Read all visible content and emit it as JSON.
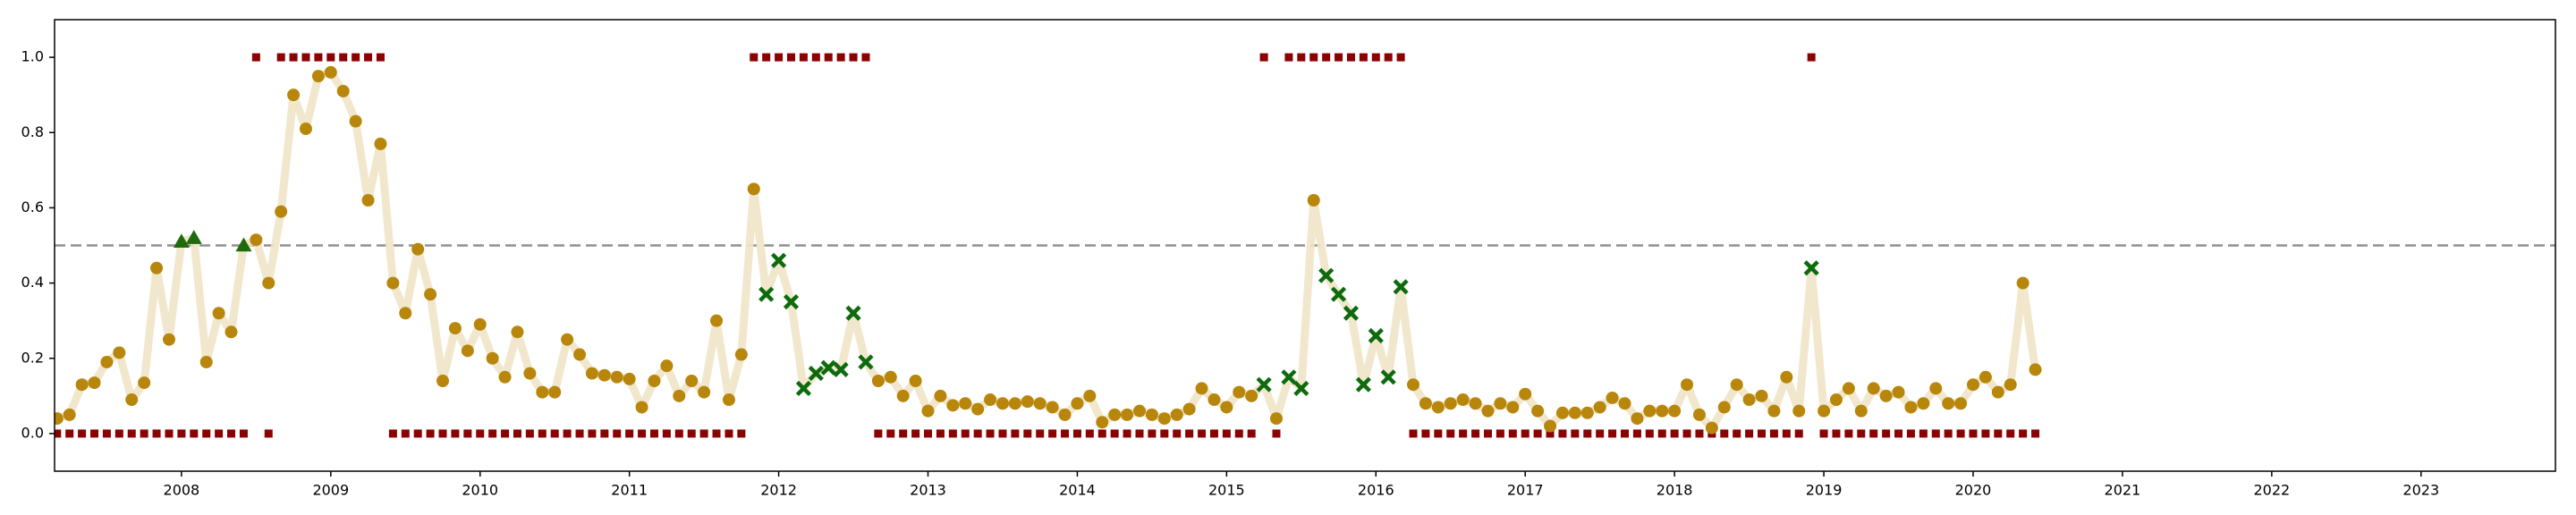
{
  "chart_data": {
    "type": "line",
    "x": [
      2007.1667,
      2007.25,
      2007.3333,
      2007.4167,
      2007.5,
      2007.5833,
      2007.6667,
      2007.75,
      2007.8333,
      2007.9167,
      2008,
      2008.0833,
      2008.1667,
      2008.25,
      2008.3333,
      2008.4167,
      2008.5,
      2008.5833,
      2008.6667,
      2008.75,
      2008.8333,
      2008.9167,
      2009,
      2009.0833,
      2009.1667,
      2009.25,
      2009.3333,
      2009.4167,
      2009.5,
      2009.5833,
      2009.6667,
      2009.75,
      2009.8333,
      2009.9167,
      2010,
      2010.0833,
      2010.1667,
      2010.25,
      2010.3333,
      2010.4167,
      2010.5,
      2010.5833,
      2010.6667,
      2010.75,
      2010.8333,
      2010.9167,
      2011,
      2011.0833,
      2011.1667,
      2011.25,
      2011.3333,
      2011.4167,
      2011.5,
      2011.5833,
      2011.6667,
      2011.75,
      2011.8333,
      2011.9167,
      2012,
      2012.0833,
      2012.1667,
      2012.25,
      2012.3333,
      2012.4167,
      2012.5,
      2012.5833,
      2012.6667,
      2012.75,
      2012.8333,
      2012.9167,
      2013,
      2013.0833,
      2013.1667,
      2013.25,
      2013.3333,
      2013.4167,
      2013.5,
      2013.5833,
      2013.6667,
      2013.75,
      2013.8333,
      2013.9167,
      2014,
      2014.0833,
      2014.1667,
      2014.25,
      2014.3333,
      2014.4167,
      2014.5,
      2014.5833,
      2014.6667,
      2014.75,
      2014.8333,
      2014.9167,
      2015,
      2015.0833,
      2015.1667,
      2015.25,
      2015.3333,
      2015.4167,
      2015.5,
      2015.5833,
      2015.6667,
      2015.75,
      2015.8333,
      2015.9167,
      2016,
      2016.0833,
      2016.1667,
      2016.25,
      2016.3333,
      2016.4167,
      2016.5,
      2016.5833,
      2016.6667,
      2016.75,
      2016.8333,
      2016.9167,
      2017,
      2017.0833,
      2017.1667,
      2017.25,
      2017.3333,
      2017.4167,
      2017.5,
      2017.5833,
      2017.6667,
      2017.75,
      2017.8333,
      2017.9167,
      2018,
      2018.0833,
      2018.1667,
      2018.25,
      2018.3333,
      2018.4167,
      2018.5,
      2018.5833,
      2018.6667,
      2018.75,
      2018.8333,
      2018.9167,
      2019,
      2019.0833,
      2019.1667,
      2019.25,
      2019.3333,
      2019.4167,
      2019.5,
      2019.5833,
      2019.6667,
      2019.75,
      2019.8333,
      2019.9167,
      2020,
      2020.0833,
      2020.1667,
      2020.25,
      2020.3333,
      2020.4167
    ],
    "values": [
      0.04,
      0.05,
      0.13,
      0.135,
      0.19,
      0.215,
      0.09,
      0.135,
      0.44,
      0.25,
      0.51,
      0.52,
      0.19,
      0.32,
      0.27,
      0.5,
      0.515,
      0.4,
      0.59,
      0.9,
      0.81,
      0.95,
      0.96,
      0.91,
      0.83,
      0.62,
      0.77,
      0.4,
      0.32,
      0.49,
      0.37,
      0.14,
      0.28,
      0.22,
      0.29,
      0.2,
      0.15,
      0.27,
      0.16,
      0.11,
      0.11,
      0.25,
      0.21,
      0.16,
      0.155,
      0.15,
      0.145,
      0.07,
      0.14,
      0.18,
      0.1,
      0.14,
      0.11,
      0.3,
      0.09,
      0.21,
      0.65,
      0.37,
      0.46,
      0.35,
      0.12,
      0.16,
      0.175,
      0.17,
      0.32,
      0.19,
      0.14,
      0.15,
      0.1,
      0.14,
      0.06,
      0.1,
      0.075,
      0.08,
      0.065,
      0.09,
      0.08,
      0.08,
      0.085,
      0.08,
      0.07,
      0.05,
      0.08,
      0.1,
      0.03,
      0.05,
      0.05,
      0.06,
      0.05,
      0.04,
      0.05,
      0.065,
      0.12,
      0.09,
      0.07,
      0.11,
      0.1,
      0.13,
      0.04,
      0.15,
      0.12,
      0.62,
      0.42,
      0.37,
      0.32,
      0.13,
      0.26,
      0.15,
      0.39,
      0.13,
      0.08,
      0.07,
      0.08,
      0.09,
      0.08,
      0.06,
      0.08,
      0.07,
      0.105,
      0.06,
      0.02,
      0.055,
      0.055,
      0.055,
      0.07,
      0.095,
      0.08,
      0.04,
      0.06,
      0.06,
      0.06,
      0.13,
      0.05,
      0.015,
      0.07,
      0.13,
      0.09,
      0.1,
      0.06,
      0.15,
      0.06,
      0.44,
      0.06,
      0.09,
      0.12,
      0.06,
      0.12,
      0.1,
      0.11,
      0.07,
      0.08,
      0.12,
      0.08,
      0.08,
      0.13,
      0.15,
      0.11,
      0.13,
      0.4,
      0.17
    ],
    "labels": [
      0,
      0,
      0,
      0,
      0,
      0,
      0,
      0,
      0,
      0,
      0,
      0,
      0,
      0,
      0,
      0,
      1,
      0,
      1,
      1,
      1,
      1,
      1,
      1,
      1,
      1,
      1,
      0,
      0,
      0,
      0,
      0,
      0,
      0,
      0,
      0,
      0,
      0,
      0,
      0,
      0,
      0,
      0,
      0,
      0,
      0,
      0,
      0,
      0,
      0,
      0,
      0,
      0,
      0,
      0,
      0,
      1,
      1,
      1,
      1,
      1,
      1,
      1,
      1,
      1,
      1,
      0,
      0,
      0,
      0,
      0,
      0,
      0,
      0,
      0,
      0,
      0,
      0,
      0,
      0,
      0,
      0,
      0,
      0,
      0,
      0,
      0,
      0,
      0,
      0,
      0,
      0,
      0,
      0,
      0,
      0,
      0,
      1,
      0,
      1,
      1,
      1,
      1,
      1,
      1,
      1,
      1,
      1,
      1,
      0,
      0,
      0,
      0,
      0,
      0,
      0,
      0,
      0,
      0,
      0,
      0,
      0,
      0,
      0,
      0,
      0,
      0,
      0,
      0,
      0,
      0,
      0,
      0,
      0,
      0,
      0,
      0,
      0,
      0,
      0,
      0,
      1,
      0,
      0,
      0,
      0,
      0,
      0,
      0,
      0,
      0,
      0,
      0,
      0,
      0,
      0,
      0,
      0,
      0,
      0
    ],
    "threshold": 0.5,
    "line_color": "#f0e4c8",
    "label_color": "#8b0000",
    "threshold_color": "#909090",
    "marker_styles": {
      "correct": {
        "shape": "circle",
        "color": "#b8860b"
      },
      "false_positive": {
        "shape": "triangle",
        "color": "#1e6a0c"
      },
      "false_negative": {
        "shape": "cross",
        "color": "#0d6b0d"
      }
    },
    "xlim": [
      2007.15,
      2023.9
    ],
    "ylim": [
      -0.1,
      1.1
    ],
    "xticks": [
      2008,
      2009,
      2010,
      2011,
      2012,
      2013,
      2014,
      2015,
      2016,
      2017,
      2018,
      2019,
      2020,
      2021,
      2022,
      2023
    ],
    "yticks": [
      {
        "value": 0,
        "label": "0.0"
      },
      {
        "value": 0.2,
        "label": "0.2"
      },
      {
        "value": 0.4,
        "label": "0.4"
      },
      {
        "value": 0.6,
        "label": "0.6"
      },
      {
        "value": 0.8,
        "label": "0.8"
      },
      {
        "value": 1,
        "label": "1.0"
      }
    ]
  }
}
